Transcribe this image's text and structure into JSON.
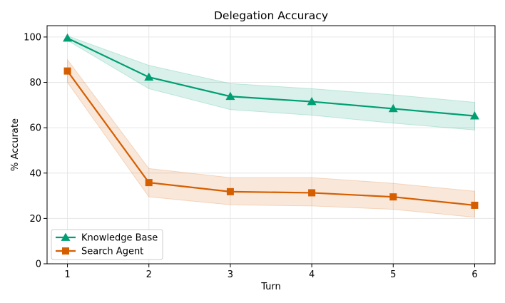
{
  "chart_data": {
    "type": "line",
    "title": "Delegation Accuracy",
    "xlabel": "Turn",
    "ylabel": "% Accurate",
    "x": [
      1,
      2,
      3,
      4,
      5,
      6
    ],
    "xlim": [
      0.75,
      6.25
    ],
    "ylim": [
      0,
      105
    ],
    "xticks": [
      1,
      2,
      3,
      4,
      5,
      6
    ],
    "yticks": [
      0,
      20,
      40,
      60,
      80,
      100
    ],
    "grid": true,
    "legend_position": "lower-left",
    "series": [
      {
        "name": "Knowledge Base",
        "color": "#009e73",
        "marker": "triangle",
        "values": [
          99.5,
          82.3,
          73.8,
          71.5,
          68.4,
          65.2
        ],
        "lower": [
          98.5,
          77.2,
          68.0,
          65.5,
          62.0,
          59.0
        ],
        "upper": [
          100.5,
          87.5,
          79.5,
          77.2,
          74.5,
          71.2
        ]
      },
      {
        "name": "Search Agent",
        "color": "#d55e00",
        "marker": "square",
        "values": [
          85.0,
          35.8,
          31.8,
          31.3,
          29.5,
          25.8
        ],
        "lower": [
          80.0,
          29.5,
          26.0,
          25.5,
          24.0,
          20.5
        ],
        "upper": [
          90.0,
          42.0,
          38.0,
          38.0,
          35.5,
          32.0
        ]
      }
    ]
  }
}
